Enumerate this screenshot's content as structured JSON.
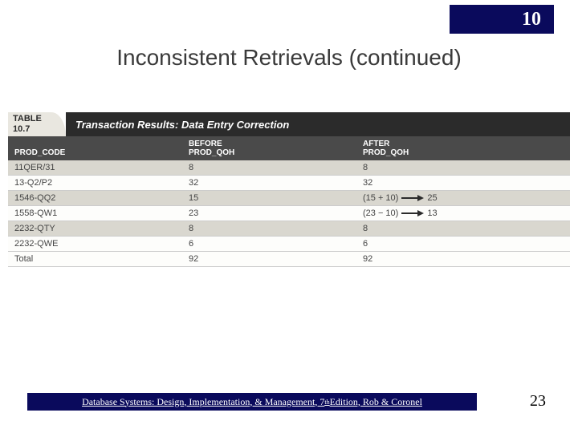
{
  "chapter_number": "10",
  "slide_title": "Inconsistent Retrievals (continued)",
  "table": {
    "label": "TABLE",
    "number": "10.7",
    "title": "Transaction Results: Data Entry Correction",
    "columns": {
      "code": "PROD_CODE",
      "before_top": "BEFORE",
      "before_sub": "PROD_QOH",
      "after_top": "AFTER",
      "after_sub": "PROD_QOH"
    },
    "rows": [
      {
        "code": "11QER/31",
        "before": "8",
        "after_calc": "",
        "after_val": "8",
        "stripe": "a"
      },
      {
        "code": "13-Q2/P2",
        "before": "32",
        "after_calc": "",
        "after_val": "32",
        "stripe": "b"
      },
      {
        "code": "1546-QQ2",
        "before": "15",
        "after_calc": "(15 + 10)",
        "after_val": "25",
        "stripe": "a"
      },
      {
        "code": "1558-QW1",
        "before": "23",
        "after_calc": "(23 − 10)",
        "after_val": "13",
        "stripe": "b"
      },
      {
        "code": "2232-QTY",
        "before": "8",
        "after_calc": "",
        "after_val": "8",
        "stripe": "a"
      },
      {
        "code": "2232-QWE",
        "before": "6",
        "after_calc": "",
        "after_val": "6",
        "stripe": "b"
      }
    ],
    "total": {
      "label": "Total",
      "before": "92",
      "after": "92"
    },
    "arrow_color": "#2b2b2b"
  },
  "footer": {
    "text_prefix": "Database Systems: Design, Implementation, & Management, 7",
    "text_sup": "th",
    "text_suffix": " Edition, Rob & Coronel"
  },
  "page_number": "23",
  "colors": {
    "badge_bg": "#0a0a5c",
    "header_dark": "#2b2b2b",
    "subhead_gray": "#4a4a4a",
    "stripe_a": "#d9d7cf",
    "stripe_b": "#fdfdfb"
  }
}
